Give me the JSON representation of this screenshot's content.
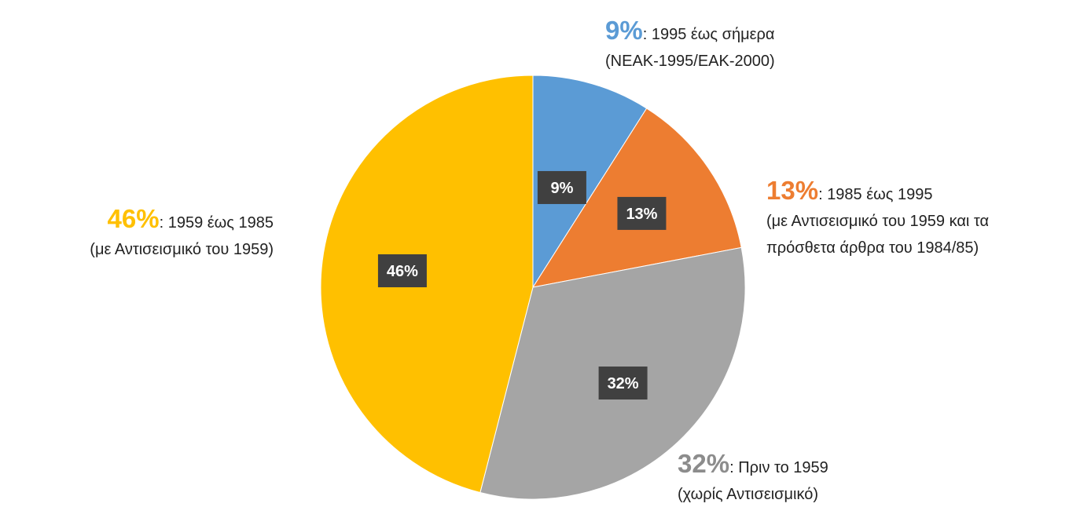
{
  "chart_data": {
    "type": "pie",
    "start_angle_deg": 0,
    "direction": "clockwise",
    "slices": [
      {
        "label": "9%",
        "value": 9,
        "color": "#5b9bd5",
        "period": "1995 έως σήμερα",
        "note": "(ΝΕΑΚ-1995/ΕΑΚ-2000)"
      },
      {
        "label": "13%",
        "value": 13,
        "color": "#ed7d31",
        "period": "1985 έως 1995",
        "note": "(με Αντισεισμικό του 1959 και τα",
        "note2": "πρόσθετα άρθρα του 1984/85)"
      },
      {
        "label": "32%",
        "value": 32,
        "color": "#a5a5a5",
        "period": "Πριν το 1959",
        "note": "(χωρίς Αντισεισμικό)"
      },
      {
        "label": "46%",
        "value": 46,
        "color": "#ffc000",
        "period": "1959 έως 1985",
        "note": "(με Αντισεισμικό του 1959)"
      }
    ],
    "data_label_box_color": "#404040",
    "data_label_text_color": "#ffffff"
  }
}
